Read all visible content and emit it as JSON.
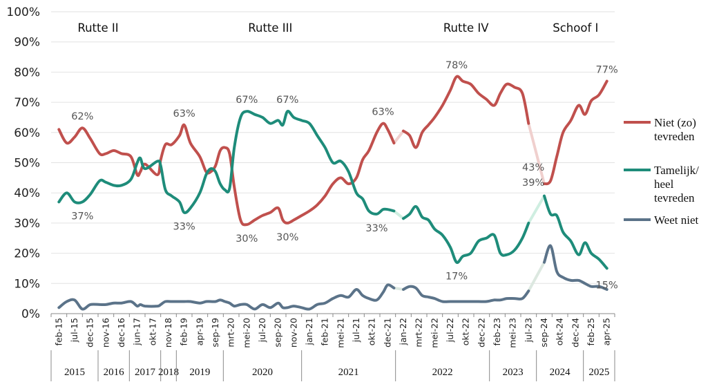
{
  "colors": {
    "niet": "#c0504d",
    "tamelijk": "#1e8c7a",
    "weet": "#5b7389",
    "niet_gap": "#f0d0ce",
    "tamelijk_gap": "#cfeee1",
    "weet_gap": "#dce8e0",
    "axis": "#888888"
  },
  "chart_data": {
    "type": "line",
    "ylim": [
      0,
      100
    ],
    "y_ticks": [
      "0%",
      "10%",
      "20%",
      "30%",
      "40%",
      "50%",
      "60%",
      "70%",
      "80%",
      "90%",
      "100%"
    ],
    "x_tick_labels": [
      "feb-15",
      "jul-15",
      "dec-15",
      "nov-16",
      "dec-16",
      "jun-17",
      "okt-17",
      "nov-18",
      "feb-19",
      "apr-19",
      "sep-19",
      "mrt-20",
      "mei-20",
      "jul-20",
      "sep-20",
      "nov-20",
      "jan-21",
      "feb-21",
      "mei-21",
      "jul-21",
      "okt-21",
      "dec-21",
      "jan-22",
      "mrt-22",
      "mei-22",
      "jul-22",
      "okt-22",
      "dec-22",
      "feb-23",
      "mei-23",
      "jul-23",
      "sep-24",
      "okt-24",
      "dec-24",
      "feb-25",
      "apr-25"
    ],
    "year_groups": [
      {
        "label": "2015",
        "from": 0,
        "to": 2
      },
      {
        "label": "2016",
        "from": 3,
        "to": 4
      },
      {
        "label": "2017",
        "from": 5,
        "to": 6
      },
      {
        "label": "2018",
        "from": 7,
        "to": 7
      },
      {
        "label": "2019",
        "from": 8,
        "to": 10
      },
      {
        "label": "2020",
        "from": 11,
        "to": 15
      },
      {
        "label": "2021",
        "from": 16,
        "to": 21
      },
      {
        "label": "2022",
        "from": 22,
        "to": 27
      },
      {
        "label": "2023",
        "from": 28,
        "to": 30
      },
      {
        "label": "2024",
        "from": 31,
        "to": 33
      },
      {
        "label": "2025",
        "from": 34,
        "to": 35
      }
    ],
    "cabinets": [
      {
        "label": "Rutte II",
        "at": 2.5
      },
      {
        "label": "Rutte III",
        "at": 13.5
      },
      {
        "label": "Rutte IV",
        "at": 26.0
      },
      {
        "label": "Schoof I",
        "at": 33.0
      }
    ],
    "series": [
      {
        "name": "Niet (zo) tevreden",
        "color_key": "niet",
        "points": [
          [
            0,
            61
          ],
          [
            0.5,
            56.5
          ],
          [
            1,
            58.5
          ],
          [
            1.5,
            61.5
          ],
          [
            2,
            58
          ],
          [
            2.6,
            53
          ],
          [
            3,
            53
          ],
          [
            3.5,
            54
          ],
          [
            4,
            53
          ],
          [
            4.6,
            52
          ],
          [
            5,
            46
          ],
          [
            5.2,
            47
          ],
          [
            5.5,
            49.5
          ],
          [
            6.3,
            46
          ],
          [
            6.5,
            51
          ],
          [
            6.8,
            56
          ],
          [
            7.2,
            56
          ],
          [
            7.7,
            59
          ],
          [
            8,
            62.5
          ],
          [
            8.4,
            56.5
          ],
          [
            9,
            52
          ],
          [
            9.4,
            47
          ],
          [
            9.7,
            47
          ],
          [
            10,
            49
          ],
          [
            10.3,
            54
          ],
          [
            10.6,
            55
          ],
          [
            10.9,
            53
          ],
          [
            11.2,
            42
          ],
          [
            11.6,
            31
          ],
          [
            12,
            29.5
          ],
          [
            12.5,
            31
          ],
          [
            13,
            32.5
          ],
          [
            13.5,
            33.5
          ],
          [
            14,
            35
          ],
          [
            14.3,
            31
          ],
          [
            14.6,
            30
          ],
          [
            15,
            31
          ],
          [
            15.5,
            32.5
          ],
          [
            16,
            34
          ],
          [
            16.5,
            36
          ],
          [
            17,
            39
          ],
          [
            17.5,
            43
          ],
          [
            18,
            45
          ],
          [
            18.5,
            43
          ],
          [
            19,
            45
          ],
          [
            19.4,
            51
          ],
          [
            19.8,
            54
          ],
          [
            20.3,
            60
          ],
          [
            20.7,
            63
          ],
          [
            21,
            61
          ],
          [
            21.4,
            56.5
          ]
        ],
        "gap1": [
          [
            21.4,
            56.5
          ],
          [
            22,
            60.5
          ]
        ],
        "points2": [
          [
            22,
            60.5
          ],
          [
            22.4,
            59
          ],
          [
            22.8,
            55
          ],
          [
            23.2,
            60
          ],
          [
            23.6,
            62.5
          ],
          [
            24,
            65
          ],
          [
            24.5,
            69
          ],
          [
            25,
            74
          ],
          [
            25.4,
            78.5
          ],
          [
            25.8,
            77
          ],
          [
            26.3,
            76
          ],
          [
            26.8,
            73
          ],
          [
            27.3,
            71
          ],
          [
            27.8,
            69
          ],
          [
            28.2,
            73
          ],
          [
            28.6,
            76
          ],
          [
            29.1,
            75
          ],
          [
            29.6,
            73
          ],
          [
            30,
            63
          ]
        ],
        "gap2": [
          [
            30,
            63
          ],
          [
            31,
            43
          ]
        ],
        "points3": [
          [
            31,
            43
          ],
          [
            31.4,
            44
          ],
          [
            31.8,
            52
          ],
          [
            32.2,
            60
          ],
          [
            32.7,
            64
          ],
          [
            33.2,
            69
          ],
          [
            33.6,
            66
          ],
          [
            34,
            70.5
          ],
          [
            34.5,
            72.5
          ],
          [
            35,
            77
          ]
        ]
      },
      {
        "name": "Tamelijk/ heel tevreden",
        "color_key": "tamelijk",
        "points": [
          [
            0,
            37
          ],
          [
            0.5,
            40
          ],
          [
            1,
            37
          ],
          [
            1.5,
            37
          ],
          [
            2,
            39.5
          ],
          [
            2.6,
            44
          ],
          [
            3,
            43.5
          ],
          [
            3.5,
            42.5
          ],
          [
            4,
            42.5
          ],
          [
            4.6,
            44.5
          ],
          [
            5,
            50
          ],
          [
            5.2,
            51.5
          ],
          [
            5.5,
            48
          ],
          [
            6.3,
            50.5
          ],
          [
            6.5,
            49
          ],
          [
            6.8,
            41
          ],
          [
            7.2,
            39
          ],
          [
            7.7,
            37
          ],
          [
            8,
            33.5
          ],
          [
            8.4,
            35
          ],
          [
            9,
            40
          ],
          [
            9.4,
            46
          ],
          [
            9.7,
            48
          ],
          [
            10,
            47
          ],
          [
            10.3,
            43
          ],
          [
            10.6,
            41
          ],
          [
            10.9,
            41.5
          ],
          [
            11.2,
            55
          ],
          [
            11.6,
            65
          ],
          [
            12,
            67
          ],
          [
            12.5,
            66
          ],
          [
            13,
            65
          ],
          [
            13.5,
            63
          ],
          [
            14,
            64
          ],
          [
            14.3,
            62.5
          ],
          [
            14.6,
            67
          ],
          [
            15,
            65
          ],
          [
            15.5,
            64
          ],
          [
            16,
            63
          ],
          [
            16.5,
            59
          ],
          [
            17,
            55
          ],
          [
            17.5,
            50
          ],
          [
            18,
            50.5
          ],
          [
            18.5,
            47
          ],
          [
            19,
            40
          ],
          [
            19.4,
            38
          ],
          [
            19.8,
            34
          ],
          [
            20.3,
            33
          ],
          [
            20.7,
            34.5
          ],
          [
            21,
            34.5
          ],
          [
            21.4,
            34
          ]
        ],
        "gap1": [
          [
            21.4,
            34
          ],
          [
            22,
            31.5
          ]
        ],
        "points2": [
          [
            22,
            31.5
          ],
          [
            22.4,
            33
          ],
          [
            22.8,
            35.5
          ],
          [
            23.2,
            32
          ],
          [
            23.6,
            31
          ],
          [
            24,
            28
          ],
          [
            24.5,
            26
          ],
          [
            25,
            22
          ],
          [
            25.4,
            17
          ],
          [
            25.8,
            19
          ],
          [
            26.3,
            20
          ],
          [
            26.8,
            24
          ],
          [
            27.3,
            25
          ],
          [
            27.8,
            26
          ],
          [
            28.2,
            20
          ],
          [
            28.6,
            19.5
          ],
          [
            29.1,
            21
          ],
          [
            29.6,
            25
          ],
          [
            30,
            30
          ]
        ],
        "gap2": [
          [
            30,
            30
          ],
          [
            31,
            39
          ]
        ],
        "points3": [
          [
            31,
            39
          ],
          [
            31.4,
            33
          ],
          [
            31.8,
            32.5
          ],
          [
            32.2,
            27
          ],
          [
            32.7,
            24
          ],
          [
            33.2,
            19.5
          ],
          [
            33.6,
            23.5
          ],
          [
            34,
            20
          ],
          [
            34.5,
            18
          ],
          [
            35,
            15
          ]
        ]
      },
      {
        "name": "Weet niet",
        "color_key": "weet",
        "points": [
          [
            0,
            2
          ],
          [
            0.5,
            4
          ],
          [
            1,
            4.5
          ],
          [
            1.5,
            1.5
          ],
          [
            2,
            3
          ],
          [
            2.6,
            3
          ],
          [
            3,
            3
          ],
          [
            3.5,
            3.5
          ],
          [
            4,
            3.5
          ],
          [
            4.6,
            4
          ],
          [
            5,
            2.5
          ],
          [
            5.2,
            3
          ],
          [
            5.5,
            2.5
          ],
          [
            6.3,
            2.5
          ],
          [
            6.5,
            3
          ],
          [
            6.8,
            4
          ],
          [
            7.2,
            4
          ],
          [
            7.7,
            4
          ],
          [
            8,
            4
          ],
          [
            8.4,
            4
          ],
          [
            9,
            3.5
          ],
          [
            9.4,
            4
          ],
          [
            9.7,
            4
          ],
          [
            10,
            4
          ],
          [
            10.3,
            4.5
          ],
          [
            10.6,
            4
          ],
          [
            10.9,
            3.5
          ],
          [
            11.2,
            2.5
          ],
          [
            11.6,
            3
          ],
          [
            12,
            3
          ],
          [
            12.5,
            1.5
          ],
          [
            13,
            3
          ],
          [
            13.5,
            2
          ],
          [
            14,
            3.5
          ],
          [
            14.3,
            2
          ],
          [
            14.6,
            2
          ],
          [
            15,
            2.5
          ],
          [
            15.5,
            2
          ],
          [
            16,
            1.5
          ],
          [
            16.5,
            3
          ],
          [
            17,
            3.5
          ],
          [
            17.5,
            5
          ],
          [
            18,
            6
          ],
          [
            18.5,
            5.5
          ],
          [
            19,
            8
          ],
          [
            19.4,
            6
          ],
          [
            19.8,
            5
          ],
          [
            20.3,
            4.5
          ],
          [
            20.7,
            7
          ],
          [
            21,
            9.5
          ],
          [
            21.4,
            8.5
          ]
        ],
        "gap1": [
          [
            21.4,
            8.5
          ],
          [
            22,
            8
          ]
        ],
        "points2": [
          [
            22,
            8
          ],
          [
            22.4,
            9
          ],
          [
            22.8,
            8.5
          ],
          [
            23.2,
            6
          ],
          [
            23.6,
            5.5
          ],
          [
            24,
            5
          ],
          [
            24.5,
            4
          ],
          [
            25,
            4
          ],
          [
            25.4,
            4
          ],
          [
            25.8,
            4
          ],
          [
            26.3,
            4
          ],
          [
            26.8,
            4
          ],
          [
            27.3,
            4
          ],
          [
            27.8,
            4.5
          ],
          [
            28.2,
            4.5
          ],
          [
            28.6,
            5
          ],
          [
            29.1,
            5
          ],
          [
            29.6,
            5
          ],
          [
            30,
            7.5
          ]
        ],
        "gap2": [
          [
            30,
            7.5
          ],
          [
            31,
            17
          ]
        ],
        "points3": [
          [
            31,
            17
          ],
          [
            31.4,
            22.5
          ],
          [
            31.8,
            14
          ],
          [
            32.2,
            12
          ],
          [
            32.7,
            11
          ],
          [
            33.2,
            11
          ],
          [
            33.6,
            10
          ],
          [
            34,
            9
          ],
          [
            34.5,
            9
          ],
          [
            35,
            8
          ]
        ]
      }
    ],
    "annotations": [
      {
        "text": "62%",
        "x": 1.5,
        "y": 61.5,
        "pos": "above"
      },
      {
        "text": "37%",
        "x": 1.5,
        "y": 37,
        "pos": "below"
      },
      {
        "text": "63%",
        "x": 8.0,
        "y": 62.5,
        "pos": "above"
      },
      {
        "text": "33%",
        "x": 8.0,
        "y": 33.5,
        "pos": "below"
      },
      {
        "text": "67%",
        "x": 12.0,
        "y": 67,
        "pos": "above"
      },
      {
        "text": "30%",
        "x": 12.0,
        "y": 29.5,
        "pos": "below"
      },
      {
        "text": "67%",
        "x": 14.6,
        "y": 67,
        "pos": "above"
      },
      {
        "text": "30%",
        "x": 14.6,
        "y": 30,
        "pos": "below"
      },
      {
        "text": "63%",
        "x": 20.7,
        "y": 63,
        "pos": "above"
      },
      {
        "text": "33%",
        "x": 20.3,
        "y": 33,
        "pos": "below"
      },
      {
        "text": "78%",
        "x": 25.4,
        "y": 78.5,
        "pos": "above"
      },
      {
        "text": "17%",
        "x": 25.4,
        "y": 17,
        "pos": "below"
      },
      {
        "text": "43%",
        "x": 30.3,
        "y": 48.5,
        "pos": "at"
      },
      {
        "text": "39%",
        "x": 30.3,
        "y": 43.5,
        "pos": "at"
      },
      {
        "text": "77%",
        "x": 35.0,
        "y": 77,
        "pos": "above"
      },
      {
        "text": "15%",
        "x": 35.0,
        "y": 9.5,
        "pos": "at"
      }
    ],
    "legend": [
      {
        "lines": [
          "Niet (zo)",
          "tevreden"
        ],
        "color_key": "niet"
      },
      {
        "lines": [
          "Tamelijk/",
          "heel",
          "tevreden"
        ],
        "color_key": "tamelijk"
      },
      {
        "lines": [
          "Weet niet"
        ],
        "color_key": "weet"
      }
    ],
    "legend_position": "right"
  }
}
